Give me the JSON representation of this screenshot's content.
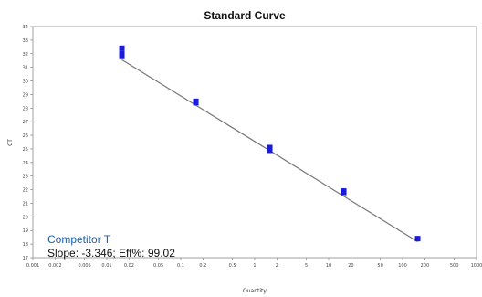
{
  "chart_data": {
    "type": "scatter",
    "title": "Standard Curve",
    "xlabel": "Quantity",
    "ylabel": "CT",
    "x_scale": "log",
    "xlim": [
      0.001,
      1000
    ],
    "ylim": [
      17,
      34
    ],
    "x_ticks": [
      "0.001",
      "0.002",
      "0.005",
      "0.01",
      "0.02",
      "0.05",
      "0.1",
      "0.2",
      "0.5",
      "1",
      "2",
      "5",
      "10",
      "20",
      "50",
      "100",
      "200",
      "500",
      "1000"
    ],
    "y_ticks": [
      "17",
      "18",
      "19",
      "20",
      "21",
      "22",
      "23",
      "24",
      "25",
      "26",
      "27",
      "28",
      "29",
      "30",
      "31",
      "32",
      "33",
      "34"
    ],
    "points": [
      {
        "x": 0.016,
        "y": 32.4
      },
      {
        "x": 0.016,
        "y": 32.0
      },
      {
        "x": 0.016,
        "y": 31.8
      },
      {
        "x": 0.16,
        "y": 28.4
      },
      {
        "x": 0.16,
        "y": 28.5
      },
      {
        "x": 1.6,
        "y": 24.9
      },
      {
        "x": 1.6,
        "y": 25.1
      },
      {
        "x": 16,
        "y": 21.8
      },
      {
        "x": 16,
        "y": 21.9
      },
      {
        "x": 160,
        "y": 18.4
      }
    ],
    "fit_line": {
      "slope": -3.346,
      "intercept": 25.55
    },
    "grid": false,
    "point_color": "#1a1adb",
    "line_color": "#777777",
    "annotation": {
      "name": "Competitor T",
      "text": "Slope: -3.346; Eff%: 99.02",
      "name_color": "#1a5fb4"
    }
  }
}
